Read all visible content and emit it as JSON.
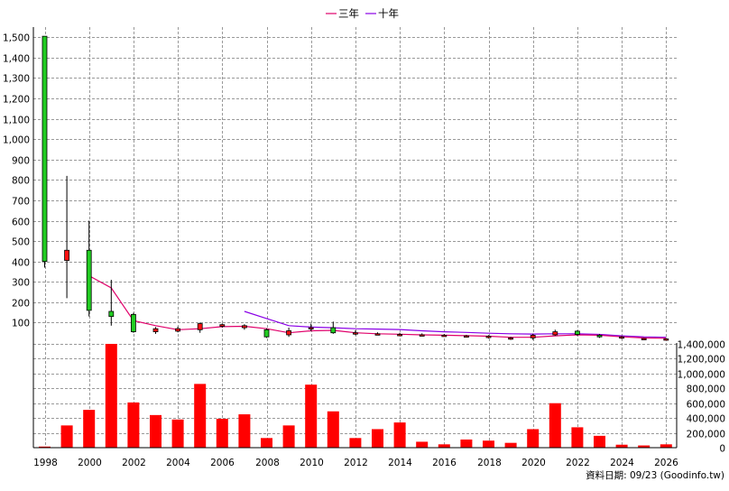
{
  "chart_data": {
    "type": "candlestick+bar",
    "legend": [
      {
        "label": "三年",
        "color": "#e0006a"
      },
      {
        "label": "十年",
        "color": "#8a00e6"
      }
    ],
    "x_tick_labels": [
      "1998",
      "2000",
      "2002",
      "2004",
      "2006",
      "2008",
      "2010",
      "2012",
      "2014",
      "2016",
      "2018",
      "2020",
      "2022",
      "2024",
      "2026"
    ],
    "x_tick_years": [
      1998,
      2000,
      2002,
      2004,
      2006,
      2008,
      2010,
      2012,
      2014,
      2016,
      2018,
      2020,
      2022,
      2024,
      2026
    ],
    "x_range": [
      1998,
      2026
    ],
    "price_axis": {
      "ylim": [
        0,
        1550
      ],
      "ticks": [
        100,
        200,
        300,
        400,
        500,
        600,
        700,
        800,
        900,
        1000,
        1100,
        1200,
        1300,
        1400,
        1500
      ],
      "tick_labels": [
        "100",
        "200",
        "300",
        "400",
        "500",
        "600",
        "700",
        "800",
        "900",
        "1,000",
        "1,100",
        "1,200",
        "1,300",
        "1,400",
        "1,500"
      ]
    },
    "volume_axis": {
      "ylim": [
        0,
        1400000
      ],
      "ticks": [
        0,
        200000,
        400000,
        600000,
        800000,
        1000000,
        1200000,
        1400000
      ],
      "tick_labels": [
        "0",
        "200,000",
        "400,000",
        "600,000",
        "800,000",
        "1,000,000",
        "1,200,000",
        "1,400,000"
      ]
    },
    "candles": [
      {
        "year": 1998,
        "open": 400,
        "close": 1505,
        "high": 1505,
        "low": 370
      },
      {
        "year": 1999,
        "open": 455,
        "close": 405,
        "high": 820,
        "low": 220
      },
      {
        "year": 2000,
        "open": 160,
        "close": 455,
        "high": 600,
        "low": 130
      },
      {
        "year": 2001,
        "open": 130,
        "close": 155,
        "high": 310,
        "low": 85
      },
      {
        "year": 2002,
        "open": 55,
        "close": 140,
        "high": 148,
        "low": 50
      },
      {
        "year": 2003,
        "open": 70,
        "close": 55,
        "high": 78,
        "low": 45
      },
      {
        "year": 2004,
        "open": 70,
        "close": 58,
        "high": 80,
        "low": 52
      },
      {
        "year": 2005,
        "open": 95,
        "close": 65,
        "high": 100,
        "low": 50
      },
      {
        "year": 2006,
        "open": 90,
        "close": 82,
        "high": 96,
        "low": 75
      },
      {
        "year": 2007,
        "open": 85,
        "close": 75,
        "high": 92,
        "low": 65
      },
      {
        "year": 2008,
        "open": 30,
        "close": 65,
        "high": 72,
        "low": 25
      },
      {
        "year": 2009,
        "open": 60,
        "close": 40,
        "high": 75,
        "low": 30
      },
      {
        "year": 2010,
        "open": 75,
        "close": 72,
        "high": 95,
        "low": 58
      },
      {
        "year": 2011,
        "open": 50,
        "close": 75,
        "high": 105,
        "low": 45
      },
      {
        "year": 2012,
        "open": 50,
        "close": 45,
        "high": 62,
        "low": 38
      },
      {
        "year": 2013,
        "open": 45,
        "close": 44,
        "high": 52,
        "low": 38
      },
      {
        "year": 2014,
        "open": 42,
        "close": 41,
        "high": 50,
        "low": 36
      },
      {
        "year": 2015,
        "open": 40,
        "close": 39,
        "high": 47,
        "low": 34
      },
      {
        "year": 2016,
        "open": 38,
        "close": 37,
        "high": 44,
        "low": 32
      },
      {
        "year": 2017,
        "open": 35,
        "close": 34,
        "high": 40,
        "low": 28
      },
      {
        "year": 2018,
        "open": 33,
        "close": 30,
        "high": 38,
        "low": 22
      },
      {
        "year": 2019,
        "open": 25,
        "close": 22,
        "high": 30,
        "low": 15
      },
      {
        "year": 2020,
        "open": 38,
        "close": 25,
        "high": 45,
        "low": 15
      },
      {
        "year": 2021,
        "open": 55,
        "close": 40,
        "high": 65,
        "low": 35
      },
      {
        "year": 2022,
        "open": 42,
        "close": 58,
        "high": 62,
        "low": 35
      },
      {
        "year": 2023,
        "open": 30,
        "close": 38,
        "high": 44,
        "low": 25
      },
      {
        "year": 2024,
        "open": 30,
        "close": 25,
        "high": 35,
        "low": 20
      },
      {
        "year": 2025,
        "open": 22,
        "close": 20,
        "high": 25,
        "low": 15
      },
      {
        "year": 2026,
        "open": 20,
        "close": 18,
        "high": 24,
        "low": 14
      }
    ],
    "ma_3y": {
      "name": "三年",
      "points": [
        [
          2000,
          330
        ],
        [
          2001,
          270
        ],
        [
          2002,
          110
        ],
        [
          2003,
          85
        ],
        [
          2004,
          65
        ],
        [
          2005,
          70
        ],
        [
          2006,
          80
        ],
        [
          2007,
          82
        ],
        [
          2008,
          70
        ],
        [
          2009,
          50
        ],
        [
          2010,
          60
        ],
        [
          2011,
          62
        ],
        [
          2012,
          50
        ],
        [
          2013,
          45
        ],
        [
          2014,
          43
        ],
        [
          2015,
          40
        ],
        [
          2016,
          38
        ],
        [
          2017,
          36
        ],
        [
          2018,
          33
        ],
        [
          2019,
          28
        ],
        [
          2020,
          28
        ],
        [
          2021,
          35
        ],
        [
          2022,
          40
        ],
        [
          2023,
          38
        ],
        [
          2024,
          30
        ],
        [
          2025,
          25
        ],
        [
          2026,
          23
        ]
      ]
    },
    "ma_10y": {
      "name": "十年",
      "points": [
        [
          2007,
          155
        ],
        [
          2008,
          120
        ],
        [
          2009,
          85
        ],
        [
          2010,
          78
        ],
        [
          2011,
          75
        ],
        [
          2012,
          70
        ],
        [
          2013,
          68
        ],
        [
          2014,
          66
        ],
        [
          2015,
          60
        ],
        [
          2016,
          55
        ],
        [
          2017,
          52
        ],
        [
          2018,
          48
        ],
        [
          2019,
          45
        ],
        [
          2020,
          44
        ],
        [
          2021,
          45
        ],
        [
          2022,
          45
        ],
        [
          2023,
          42
        ],
        [
          2024,
          35
        ],
        [
          2025,
          30
        ],
        [
          2026,
          28
        ]
      ]
    },
    "volume": [
      {
        "year": 1998,
        "value": 15000
      },
      {
        "year": 1999,
        "value": 300000
      },
      {
        "year": 2000,
        "value": 510000
      },
      {
        "year": 2001,
        "value": 1400000
      },
      {
        "year": 2002,
        "value": 610000
      },
      {
        "year": 2003,
        "value": 440000
      },
      {
        "year": 2004,
        "value": 380000
      },
      {
        "year": 2005,
        "value": 860000
      },
      {
        "year": 2006,
        "value": 390000
      },
      {
        "year": 2007,
        "value": 450000
      },
      {
        "year": 2008,
        "value": 130000
      },
      {
        "year": 2009,
        "value": 300000
      },
      {
        "year": 2010,
        "value": 850000
      },
      {
        "year": 2011,
        "value": 490000
      },
      {
        "year": 2012,
        "value": 130000
      },
      {
        "year": 2013,
        "value": 250000
      },
      {
        "year": 2014,
        "value": 340000
      },
      {
        "year": 2015,
        "value": 80000
      },
      {
        "year": 2016,
        "value": 45000
      },
      {
        "year": 2017,
        "value": 110000
      },
      {
        "year": 2018,
        "value": 95000
      },
      {
        "year": 2019,
        "value": 65000
      },
      {
        "year": 2020,
        "value": 250000
      },
      {
        "year": 2021,
        "value": 600000
      },
      {
        "year": 2022,
        "value": 275000
      },
      {
        "year": 2023,
        "value": 160000
      },
      {
        "year": 2024,
        "value": 40000
      },
      {
        "year": 2025,
        "value": 30000
      },
      {
        "year": 2026,
        "value": 45000
      }
    ],
    "colors": {
      "up": "#22cc22",
      "down": "#ff1111",
      "volume": "#ff0000",
      "grid": "#999999",
      "frame": "#000000"
    },
    "grid": true,
    "legend_position": "top-center"
  },
  "footer": {
    "source": "資料日期: 09/23 (Goodinfo.tw)"
  }
}
